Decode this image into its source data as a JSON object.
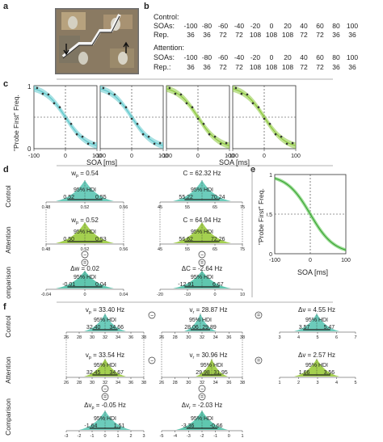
{
  "labels": {
    "a": "a",
    "b": "b",
    "c": "c",
    "d": "d",
    "e": "e",
    "f": "f"
  },
  "b_table": {
    "control_title": "Control:",
    "attention_title": "Attention:",
    "soas_label": "SOAs:",
    "rep_label_control": "Rep.",
    "rep_label_attention": "Rep.:",
    "soas": [
      "-100",
      "-80",
      "-60",
      "-40",
      "-20",
      "0",
      "20",
      "40",
      "60",
      "80",
      "100"
    ],
    "rep_control": [
      "36",
      "36",
      "72",
      "72",
      "108",
      "108",
      "108",
      "72",
      "72",
      "36",
      "36"
    ],
    "rep_attention": [
      "36",
      "36",
      "72",
      "72",
      "108",
      "108",
      "108",
      "72",
      "72",
      "36",
      "36"
    ]
  },
  "c_plots": {
    "ylabel": "\"Probe First\" Freq.",
    "xlabel_left": "SOA [ms]",
    "xlabel_right": "SOA [ms]",
    "yticks": [
      "1",
      "0"
    ],
    "xticks": [
      "-100",
      "0",
      "100"
    ],
    "colors": [
      "#5fc8cc",
      "#5fc8cc",
      "#8cc83c",
      "#8cc83c"
    ]
  },
  "e_plot": {
    "ylabel": "\"Probe First\" Freq.",
    "xlabel": "SOA [ms]",
    "yticks": [
      "1",
      "0.5",
      "0"
    ],
    "xticks": [
      "-100",
      "0",
      "100"
    ],
    "color": "#5cc850"
  },
  "d_panel": {
    "row_labels": [
      "Control",
      "Attention",
      "Comparison"
    ],
    "hdi": "95% HDI",
    "control_w": {
      "title": "w",
      "sub": "p",
      "value": "= 0.54",
      "lo": "0.52",
      "hi": "0.55"
    },
    "control_c": {
      "title": "C = 62.32 Hz",
      "lo": "55.22",
      "hi": "70.24"
    },
    "control_w_axis": [
      "0.48",
      "0.52",
      "0.56"
    ],
    "control_c_axis": [
      "45",
      "55",
      "65",
      "75"
    ],
    "attn_w": {
      "title": "w",
      "sub": "p",
      "value": "= 0.52",
      "lo": "0.50",
      "hi": "0.53"
    },
    "attn_c": {
      "title": "C = 64.94 Hz",
      "lo": "56.62",
      "hi": "72.26"
    },
    "attn_w_axis": [
      "0.48",
      "0.52",
      "0.56"
    ],
    "attn_c_axis": [
      "45",
      "55",
      "65",
      "75"
    ],
    "cmp_w": {
      "title": "Δw = 0.02",
      "lo": "-0.01",
      "hi": "0.04"
    },
    "cmp_c": {
      "title": "ΔC = -2.64 Hz",
      "lo": "-12.91",
      "hi": "6.67"
    },
    "cmp_w_axis": [
      "-0.04",
      "0",
      "0.04"
    ],
    "cmp_c_axis": [
      "-20",
      "-10",
      "0",
      "10"
    ],
    "minus": "−",
    "equals": "="
  },
  "f_panel": {
    "row_labels": [
      "Control",
      "Attention",
      "Comparison"
    ],
    "hdi": "95% HDI",
    "ctrl_vp": {
      "title": "v",
      "sub": "p",
      "value": "= 33.40 Hz",
      "lo": "32.40",
      "hi": "34.66"
    },
    "ctrl_vr": {
      "title": "v",
      "sub": "r",
      "value": "= 28.87 Hz",
      "lo": "28.06",
      "hi": "29.89"
    },
    "ctrl_dv": {
      "title": "Δv = 4.55 Hz",
      "lo": "3.57",
      "hi": "5.47"
    },
    "attn_vp": {
      "title": "v",
      "sub": "p",
      "value": "= 33.54 Hz",
      "lo": "32.45",
      "hi": "34.67"
    },
    "attn_vr": {
      "title": "v",
      "sub": "r",
      "value": "= 30.96 Hz",
      "lo": "29.98",
      "hi": "31.95"
    },
    "attn_dv": {
      "title": "Δv = 2.57 Hz",
      "lo": "1.66",
      "hi": "3.56"
    },
    "cmp_vp": {
      "title": "Δv",
      "sub": "p",
      "value": "= -0.05 Hz",
      "lo": "-1.64",
      "hi": "1.51"
    },
    "cmp_vr": {
      "title": "Δv",
      "sub": "r",
      "value": "= -2.03 Hz",
      "lo": "-3.36",
      "hi": "-0.66"
    },
    "axis_vp": [
      "26",
      "28",
      "30",
      "32",
      "34",
      "36",
      "38"
    ],
    "axis_vr": [
      "26",
      "28",
      "30",
      "32",
      "34",
      "36",
      "38"
    ],
    "axis_dv_ctrl": [
      "3",
      "4",
      "5",
      "6",
      "7"
    ],
    "axis_dv_attn": [
      "1",
      "2",
      "3",
      "4",
      "5"
    ],
    "axis_cmp_vp": [
      "-3",
      "-2",
      "-1",
      "0",
      "1",
      "2",
      "3"
    ],
    "axis_cmp_vr": [
      "-5",
      "-4",
      "-3",
      "-2",
      "-1",
      "0",
      "1"
    ],
    "minus": "−",
    "equals": "="
  }
}
